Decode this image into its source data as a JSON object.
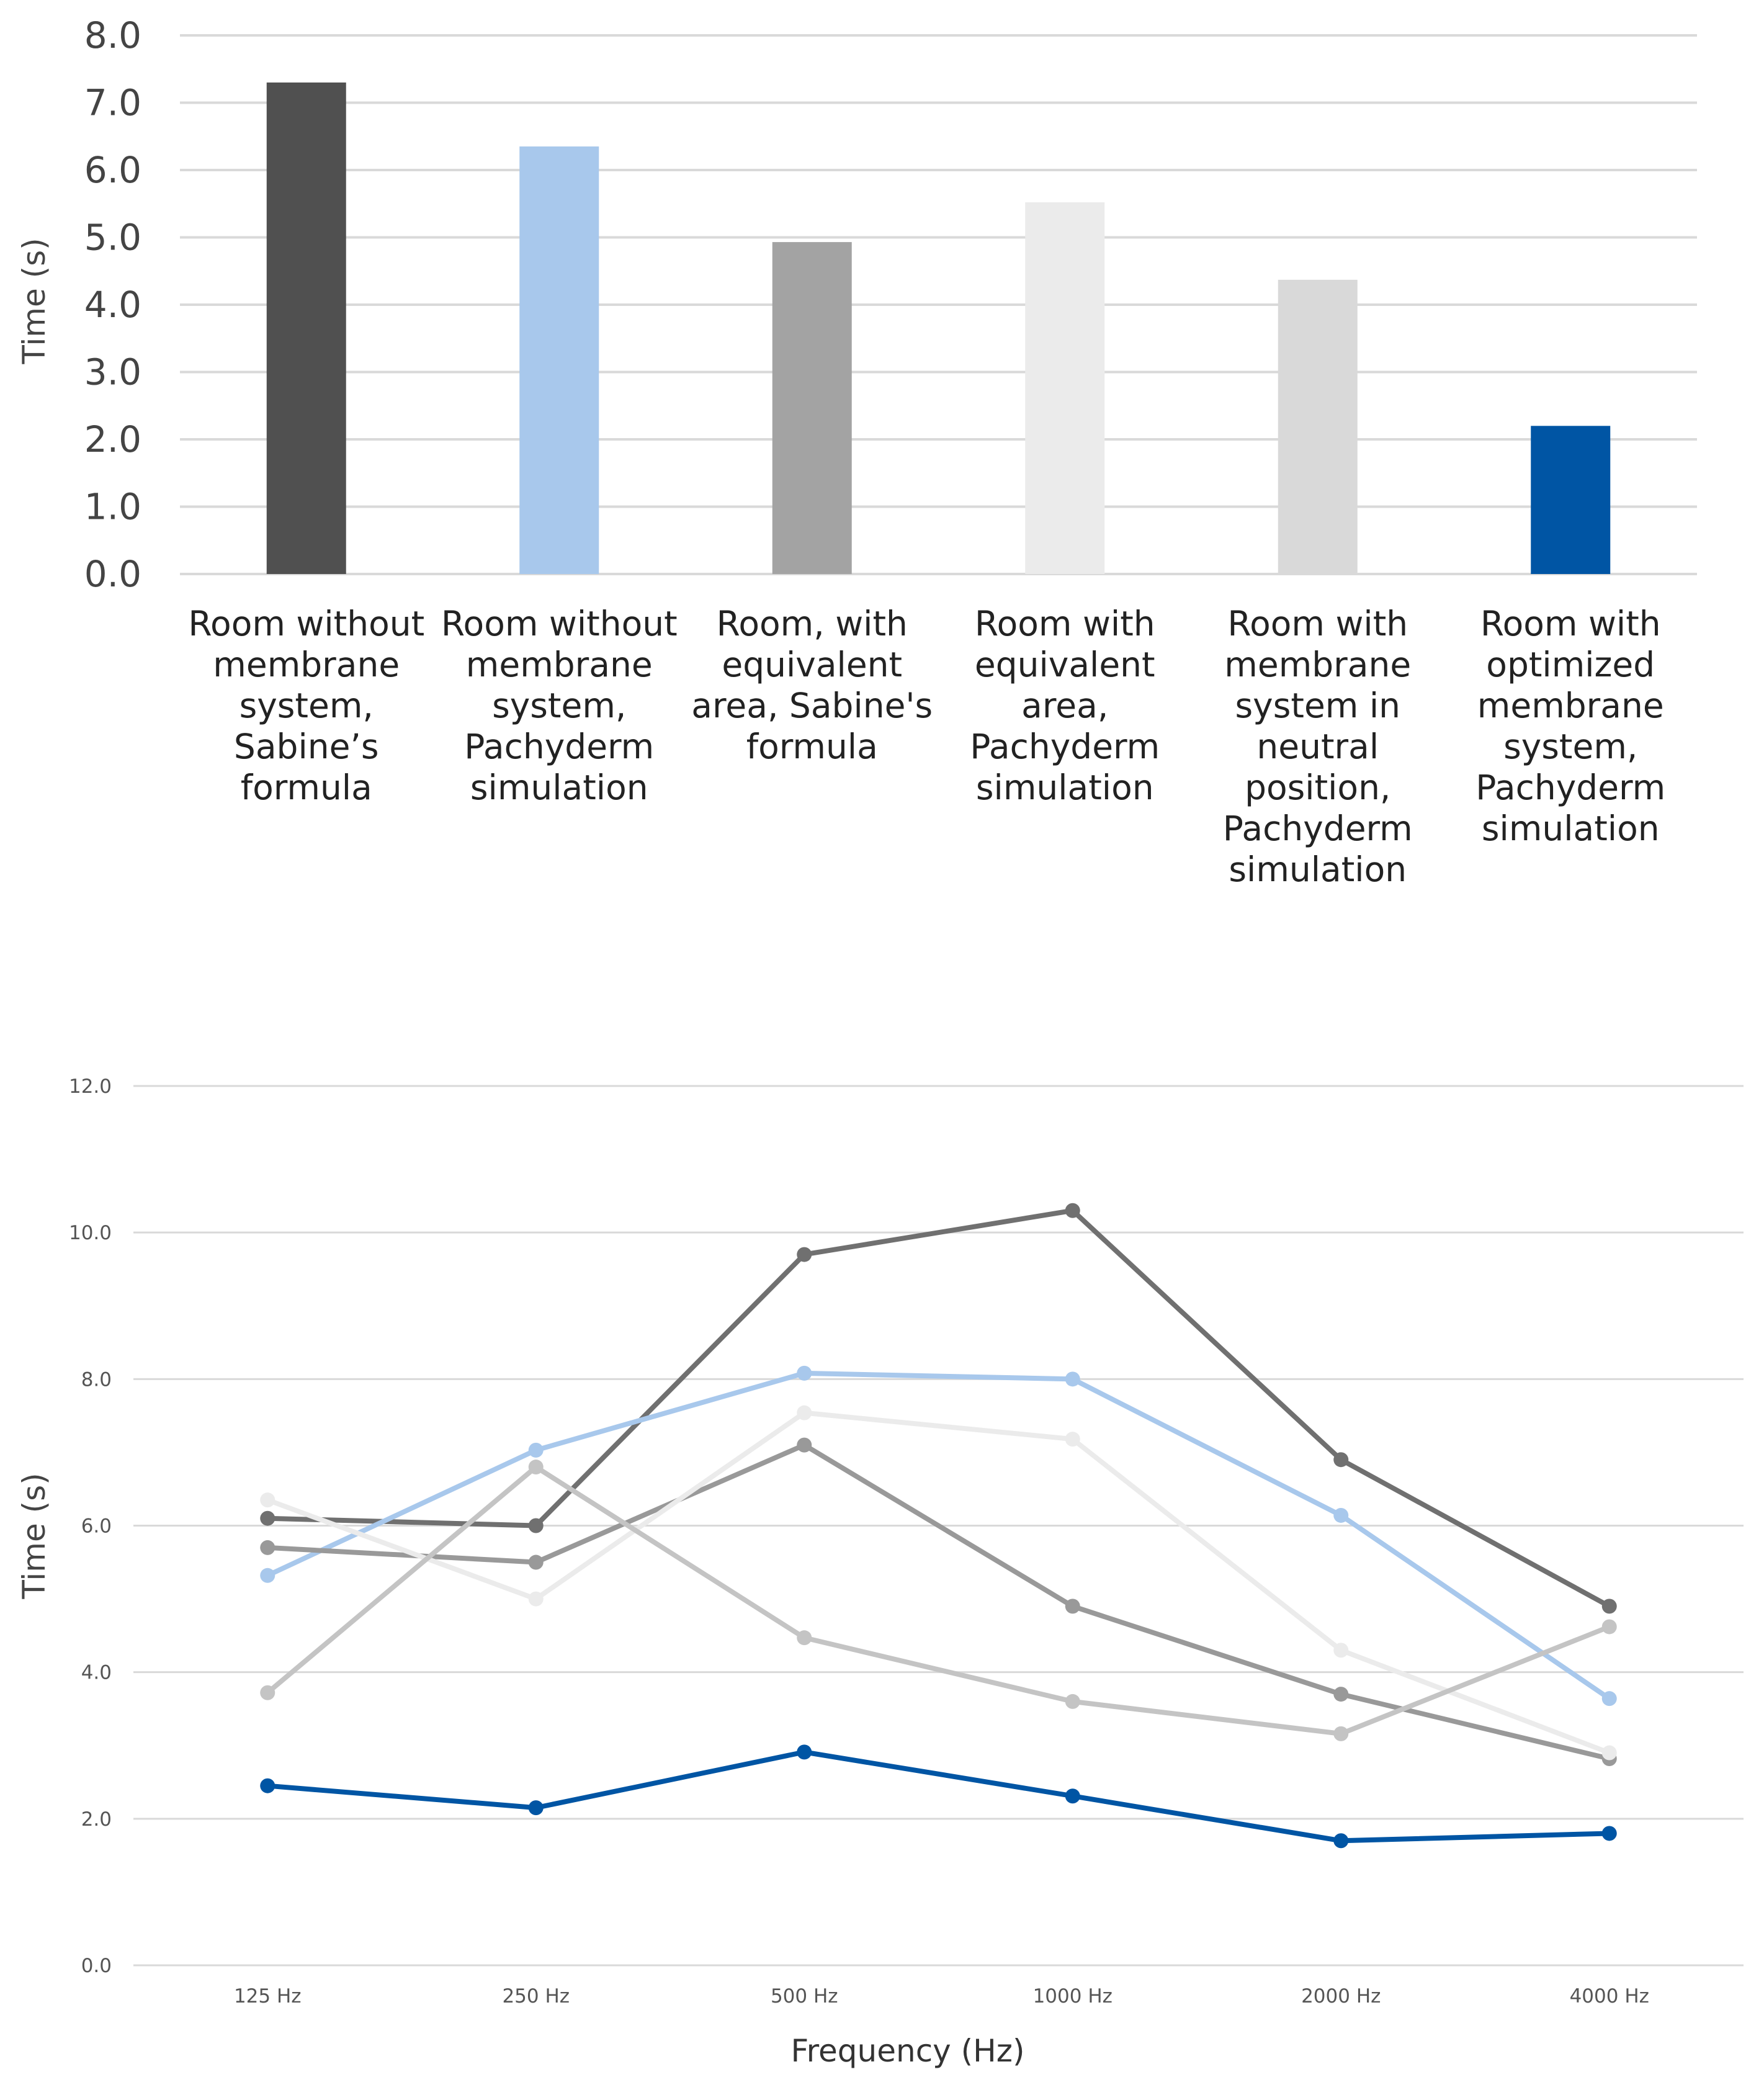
{
  "chart_data": [
    {
      "type": "bar",
      "title": "",
      "xlabel": "",
      "ylabel": "Time (s)",
      "ylim": [
        0,
        8
      ],
      "yticks": [
        "0.0",
        "1.0",
        "2.0",
        "3.0",
        "4.0",
        "5.0",
        "6.0",
        "7.0",
        "8.0"
      ],
      "grid": true,
      "categories": [
        [
          "Room without",
          "membrane",
          "system,",
          "Sabine’s",
          "formula"
        ],
        [
          "Room without",
          "membrane",
          "system,",
          "Pachyderm",
          "simulation"
        ],
        [
          "Room, with",
          "equivalent",
          "area, Sabine's",
          "formula"
        ],
        [
          "Room with",
          "equivalent",
          "area,",
          "Pachyderm",
          "simulation"
        ],
        [
          "Room with",
          "membrane",
          "system in",
          "neutral",
          "position,",
          "Pachyderm",
          "simulation"
        ],
        [
          "Room with",
          "optimized",
          "membrane",
          "system,",
          "Pachyderm",
          "simulation"
        ]
      ],
      "values": [
        7.3,
        6.35,
        4.93,
        5.52,
        4.37,
        2.2
      ],
      "colors": [
        "#505050",
        "#a8c8ec",
        "#a3a3a3",
        "#ebebeb",
        "#d9d9d9",
        "#0055a4"
      ]
    },
    {
      "type": "line",
      "title": "",
      "xlabel": "Frequency (Hz)",
      "ylabel": "Time (s)",
      "ylim": [
        0,
        12
      ],
      "yticks": [
        "0.0",
        "2.0",
        "4.0",
        "6.0",
        "8.0",
        "10.0",
        "12.0"
      ],
      "grid": true,
      "categories": [
        "125 Hz",
        "250 Hz",
        "500 Hz",
        "1000 Hz",
        "2000 Hz",
        "4000 Hz"
      ],
      "series": [
        {
          "name": "Room without membrane system, Sabine’s formula",
          "color": "#707070",
          "values": [
            6.1,
            6.0,
            9.7,
            10.3,
            6.9,
            4.9
          ]
        },
        {
          "name": "Room without membrane system, Pachyderm simulation",
          "color": "#a8c8ec",
          "values": [
            5.32,
            7.03,
            8.08,
            8.0,
            6.14,
            3.64
          ]
        },
        {
          "name": "Room, with equivalent area, Sabine's formula",
          "color": "#999999",
          "values": [
            5.7,
            5.5,
            7.1,
            4.9,
            3.7,
            2.82
          ]
        },
        {
          "name": "Room with equivalent area, Pachyderm simulation",
          "color": "#ebebeb",
          "values": [
            6.35,
            5.0,
            7.54,
            7.18,
            4.3,
            2.9
          ]
        },
        {
          "name": "Room with membrane system in neutral position, Pachyderm simulation",
          "color": "#c4c4c4",
          "values": [
            3.72,
            6.8,
            4.47,
            3.6,
            3.16,
            4.62
          ]
        },
        {
          "name": "Room with optimized membrane system, Pachyderm simulation",
          "color": "#0055a4",
          "values": [
            2.45,
            2.15,
            2.91,
            2.31,
            1.7,
            1.8
          ]
        }
      ]
    }
  ]
}
